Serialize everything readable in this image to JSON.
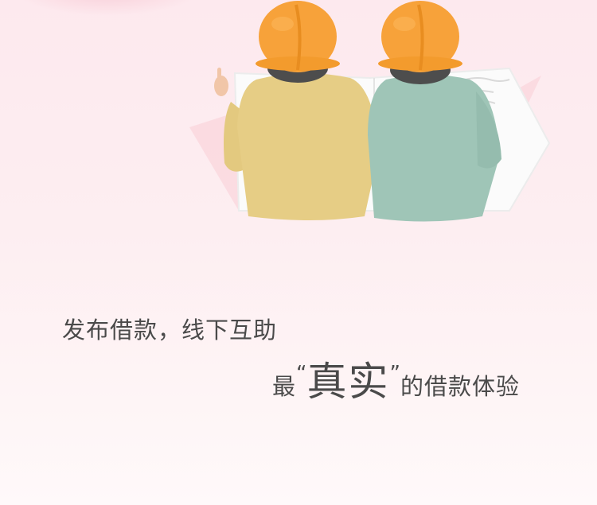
{
  "headline": "发布借款，线下互助",
  "subline": {
    "prefix": "最",
    "open_quote": "“",
    "emphasis": "真实",
    "close_quote": "”",
    "suffix": "的借款体验"
  },
  "colors": {
    "background": "#fdeef1",
    "text": "#4a4a4a",
    "helmet": "#f7a23a",
    "person_left_shirt": "#e6cd85",
    "person_right_shirt": "#9fc5b7"
  },
  "icons": {
    "illustration": "two-workers-reading-document-illustration"
  }
}
